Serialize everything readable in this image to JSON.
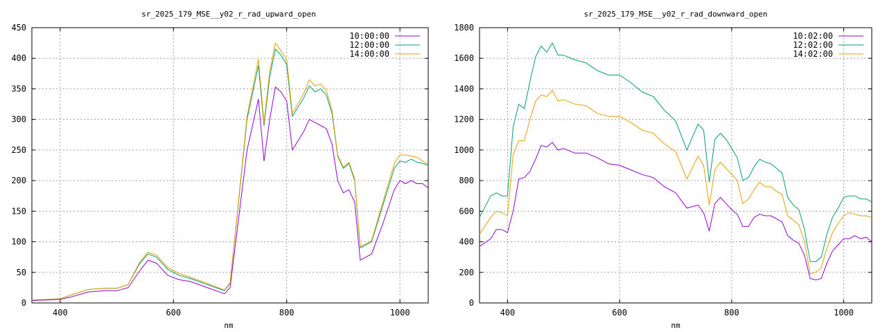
{
  "chart_data": [
    {
      "type": "line",
      "title": "sr_2025_179_MSE__y02_r_rad_upward_open",
      "xlabel": "nm",
      "ylabel": "",
      "xlim": [
        350,
        1050
      ],
      "ylim": [
        0,
        450
      ],
      "xticks": [
        400,
        600,
        800,
        1000
      ],
      "yticks": [
        0,
        50,
        100,
        150,
        200,
        250,
        300,
        350,
        400,
        450
      ],
      "grid": true,
      "legend": "top-right",
      "series": [
        {
          "name": "10:00:00",
          "color": "#9400d3",
          "x": [
            350,
            380,
            400,
            420,
            450,
            480,
            500,
            520,
            540,
            555,
            570,
            590,
            610,
            630,
            660,
            690,
            700,
            710,
            730,
            750,
            760,
            770,
            780,
            790,
            800,
            810,
            830,
            840,
            850,
            860,
            870,
            880,
            890,
            900,
            910,
            920,
            930,
            940,
            950,
            970,
            990,
            1000,
            1010,
            1020,
            1030,
            1040,
            1050
          ],
          "y": [
            4,
            5,
            6,
            10,
            18,
            20,
            20,
            25,
            52,
            70,
            65,
            45,
            38,
            35,
            25,
            15,
            25,
            100,
            250,
            333,
            232,
            300,
            353,
            345,
            330,
            250,
            280,
            300,
            295,
            290,
            285,
            260,
            200,
            180,
            185,
            165,
            70,
            75,
            80,
            130,
            185,
            200,
            195,
            200,
            195,
            195,
            188
          ]
        },
        {
          "name": "12:00:00",
          "color": "#009e73",
          "x": [
            350,
            380,
            400,
            420,
            450,
            480,
            500,
            520,
            540,
            555,
            570,
            590,
            610,
            630,
            660,
            690,
            700,
            710,
            730,
            750,
            760,
            770,
            780,
            790,
            800,
            810,
            830,
            840,
            850,
            860,
            870,
            880,
            890,
            900,
            910,
            920,
            930,
            940,
            950,
            970,
            990,
            1000,
            1010,
            1020,
            1030,
            1040,
            1050
          ],
          "y": [
            5,
            6,
            7,
            13,
            22,
            24,
            24,
            30,
            64,
            80,
            75,
            55,
            45,
            40,
            30,
            20,
            32,
            120,
            300,
            388,
            290,
            370,
            415,
            405,
            390,
            305,
            335,
            355,
            345,
            350,
            340,
            310,
            240,
            220,
            228,
            200,
            90,
            95,
            100,
            160,
            220,
            232,
            230,
            235,
            230,
            228,
            225
          ]
        },
        {
          "name": "14:00:00",
          "color": "#e69f00",
          "x": [
            350,
            380,
            400,
            420,
            450,
            480,
            500,
            520,
            540,
            555,
            570,
            590,
            610,
            630,
            660,
            690,
            700,
            710,
            730,
            750,
            760,
            770,
            780,
            790,
            800,
            810,
            830,
            840,
            850,
            860,
            870,
            880,
            890,
            900,
            910,
            920,
            930,
            940,
            950,
            970,
            990,
            1000,
            1010,
            1020,
            1030,
            1040,
            1050
          ],
          "y": [
            5,
            6,
            7,
            13,
            22,
            24,
            24,
            30,
            66,
            83,
            78,
            58,
            48,
            42,
            32,
            21,
            33,
            122,
            305,
            398,
            295,
            378,
            425,
            412,
            398,
            310,
            342,
            365,
            355,
            358,
            348,
            315,
            242,
            222,
            230,
            203,
            92,
            97,
            102,
            165,
            228,
            242,
            242,
            240,
            238,
            232,
            226
          ]
        }
      ]
    },
    {
      "type": "line",
      "title": "sr_2025_179_MSE__y02_r_rad_downward_open",
      "xlabel": "nm",
      "ylabel": "",
      "xlim": [
        350,
        1050
      ],
      "ylim": [
        0,
        1800
      ],
      "xticks": [
        400,
        600,
        800,
        1000
      ],
      "yticks": [
        0,
        200,
        400,
        600,
        800,
        1000,
        1200,
        1400,
        1600,
        1800
      ],
      "grid": true,
      "legend": "top-right",
      "series": [
        {
          "name": "10:02:00",
          "color": "#9400d3",
          "x": [
            350,
            370,
            380,
            390,
            400,
            410,
            420,
            430,
            440,
            450,
            460,
            470,
            480,
            490,
            500,
            520,
            540,
            560,
            580,
            600,
            620,
            640,
            660,
            680,
            700,
            720,
            740,
            750,
            760,
            770,
            780,
            790,
            800,
            810,
            820,
            830,
            840,
            850,
            860,
            870,
            880,
            890,
            900,
            910,
            920,
            930,
            940,
            950,
            960,
            970,
            980,
            990,
            1000,
            1010,
            1020,
            1030,
            1040,
            1050
          ],
          "y": [
            370,
            420,
            480,
            480,
            460,
            600,
            810,
            820,
            860,
            940,
            1030,
            1020,
            1050,
            1000,
            1010,
            980,
            980,
            950,
            910,
            900,
            870,
            840,
            820,
            760,
            720,
            620,
            640,
            590,
            470,
            650,
            690,
            650,
            610,
            580,
            500,
            500,
            560,
            580,
            570,
            570,
            550,
            530,
            440,
            410,
            390,
            310,
            160,
            150,
            160,
            260,
            340,
            380,
            420,
            420,
            440,
            420,
            430,
            400
          ]
        },
        {
          "name": "12:02:00",
          "color": "#009e73",
          "x": [
            350,
            370,
            380,
            390,
            400,
            410,
            420,
            430,
            440,
            450,
            460,
            470,
            480,
            490,
            500,
            520,
            540,
            560,
            580,
            600,
            620,
            640,
            660,
            680,
            700,
            720,
            740,
            750,
            760,
            770,
            780,
            790,
            800,
            810,
            820,
            830,
            840,
            850,
            860,
            870,
            880,
            890,
            900,
            910,
            920,
            930,
            940,
            950,
            960,
            970,
            980,
            990,
            1000,
            1010,
            1020,
            1030,
            1040,
            1050
          ],
          "y": [
            560,
            700,
            720,
            700,
            700,
            1150,
            1300,
            1270,
            1450,
            1610,
            1680,
            1640,
            1700,
            1620,
            1620,
            1590,
            1570,
            1520,
            1490,
            1490,
            1440,
            1380,
            1350,
            1260,
            1190,
            1000,
            1170,
            1130,
            790,
            1070,
            1110,
            1070,
            1010,
            950,
            800,
            820,
            890,
            940,
            920,
            910,
            880,
            850,
            690,
            640,
            610,
            480,
            270,
            270,
            300,
            450,
            560,
            620,
            690,
            700,
            700,
            680,
            680,
            660
          ]
        },
        {
          "name": "14:02:00",
          "color": "#e69f00",
          "x": [
            350,
            370,
            380,
            390,
            400,
            410,
            420,
            430,
            440,
            450,
            460,
            470,
            480,
            490,
            500,
            520,
            540,
            560,
            580,
            600,
            620,
            640,
            660,
            680,
            700,
            720,
            740,
            750,
            760,
            770,
            780,
            790,
            800,
            810,
            820,
            830,
            840,
            850,
            860,
            870,
            880,
            890,
            900,
            910,
            920,
            930,
            940,
            950,
            960,
            970,
            980,
            990,
            1000,
            1010,
            1020,
            1030,
            1040,
            1050
          ],
          "y": [
            450,
            560,
            600,
            590,
            570,
            970,
            1060,
            1060,
            1200,
            1320,
            1360,
            1350,
            1390,
            1320,
            1330,
            1300,
            1290,
            1240,
            1220,
            1220,
            1180,
            1130,
            1110,
            1040,
            990,
            810,
            960,
            900,
            640,
            870,
            920,
            880,
            840,
            800,
            650,
            680,
            740,
            790,
            760,
            760,
            730,
            710,
            570,
            540,
            510,
            400,
            190,
            200,
            230,
            360,
            460,
            520,
            570,
            590,
            580,
            570,
            570,
            560
          ]
        }
      ]
    }
  ]
}
